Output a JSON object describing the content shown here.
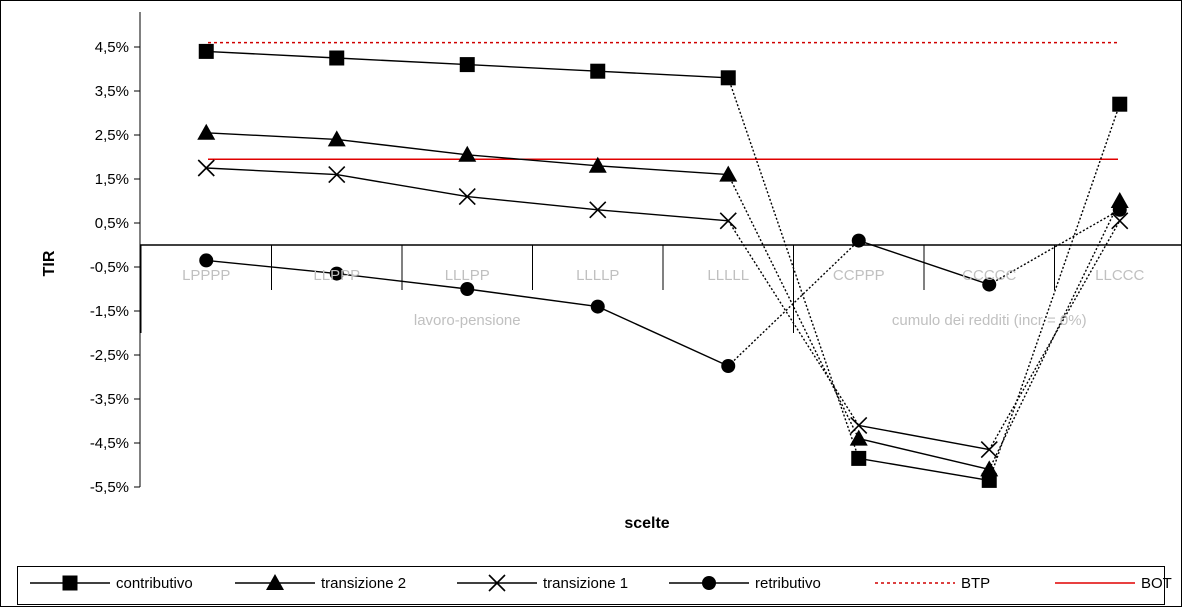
{
  "chart_data": {
    "type": "line",
    "title": "",
    "xlabel": "scelte",
    "ylabel": "TIR",
    "ylim": [
      -5.5,
      4.5
    ],
    "ytick_values": [
      4.5,
      3.5,
      2.5,
      1.5,
      0.5,
      -0.5,
      -1.5,
      -2.5,
      -3.5,
      -4.5,
      -5.5
    ],
    "ytick_labels": [
      "4,5%",
      "3,5%",
      "2,5%",
      "1,5%",
      "0,5%",
      "-0,5%",
      "-1,5%",
      "-2,5%",
      "-3,5%",
      "-4,5%",
      "-5,5%"
    ],
    "categories": [
      "LPPPP",
      "LLPPP",
      "LLLPP",
      "LLLLP",
      "LLLLL",
      "CCPPP",
      "CCCCC",
      "LLCCC"
    ],
    "category_groups": [
      {
        "label": "lavoro-pensione",
        "start": 0,
        "end": 4
      },
      {
        "label": "cumulo dei redditi (incr = 0%)",
        "start": 5,
        "end": 7
      }
    ],
    "grid": false,
    "legend_position": "bottom",
    "series": [
      {
        "name": "contributivo",
        "color": "#000000",
        "marker": "square",
        "values": [
          4.4,
          4.25,
          4.1,
          3.95,
          3.8,
          -4.85,
          -5.35,
          3.2
        ],
        "solid_segments": [
          [
            0,
            4
          ],
          [
            5,
            6
          ]
        ],
        "dotted_segments": [
          [
            4,
            5
          ],
          [
            6,
            7
          ]
        ]
      },
      {
        "name": "transizione 2",
        "color": "#000000",
        "marker": "triangle",
        "values": [
          2.55,
          2.4,
          2.05,
          1.8,
          1.6,
          -4.4,
          -5.1,
          1.0
        ],
        "solid_segments": [
          [
            0,
            4
          ],
          [
            5,
            6
          ]
        ],
        "dotted_segments": [
          [
            4,
            5
          ],
          [
            6,
            7
          ]
        ]
      },
      {
        "name": "transizione 1",
        "color": "#000000",
        "marker": "x",
        "values": [
          1.75,
          1.6,
          1.1,
          0.8,
          0.55,
          -4.1,
          -4.65,
          0.55
        ],
        "solid_segments": [
          [
            0,
            4
          ],
          [
            5,
            6
          ]
        ],
        "dotted_segments": [
          [
            4,
            5
          ],
          [
            6,
            7
          ]
        ]
      },
      {
        "name": "retributivo",
        "color": "#000000",
        "marker": "circle",
        "values": [
          -0.35,
          -0.65,
          -1.0,
          -1.4,
          -2.75,
          0.1,
          -0.9,
          0.8
        ],
        "solid_segments": [
          [
            0,
            4
          ],
          [
            5,
            6
          ]
        ],
        "dotted_segments": [
          [
            4,
            5
          ],
          [
            6,
            7
          ]
        ]
      }
    ],
    "reference_lines": [
      {
        "name": "BTP",
        "value": 4.6,
        "color": "#d00000",
        "style": "dotted"
      },
      {
        "name": "BOT",
        "value": 1.95,
        "color": "#e00000",
        "style": "solid"
      }
    ],
    "legend": [
      {
        "label": "contributivo",
        "marker": "square",
        "line": "solid",
        "color": "#000000"
      },
      {
        "label": "transizione 2",
        "marker": "triangle",
        "line": "solid",
        "color": "#000000"
      },
      {
        "label": "transizione 1",
        "marker": "x",
        "line": "solid",
        "color": "#000000"
      },
      {
        "label": "retributivo",
        "marker": "circle",
        "line": "solid",
        "color": "#000000"
      },
      {
        "label": "BTP",
        "marker": "none",
        "line": "dotted",
        "color": "#d00000"
      },
      {
        "label": "BOT",
        "marker": "none",
        "line": "solid",
        "color": "#e00000"
      }
    ]
  }
}
